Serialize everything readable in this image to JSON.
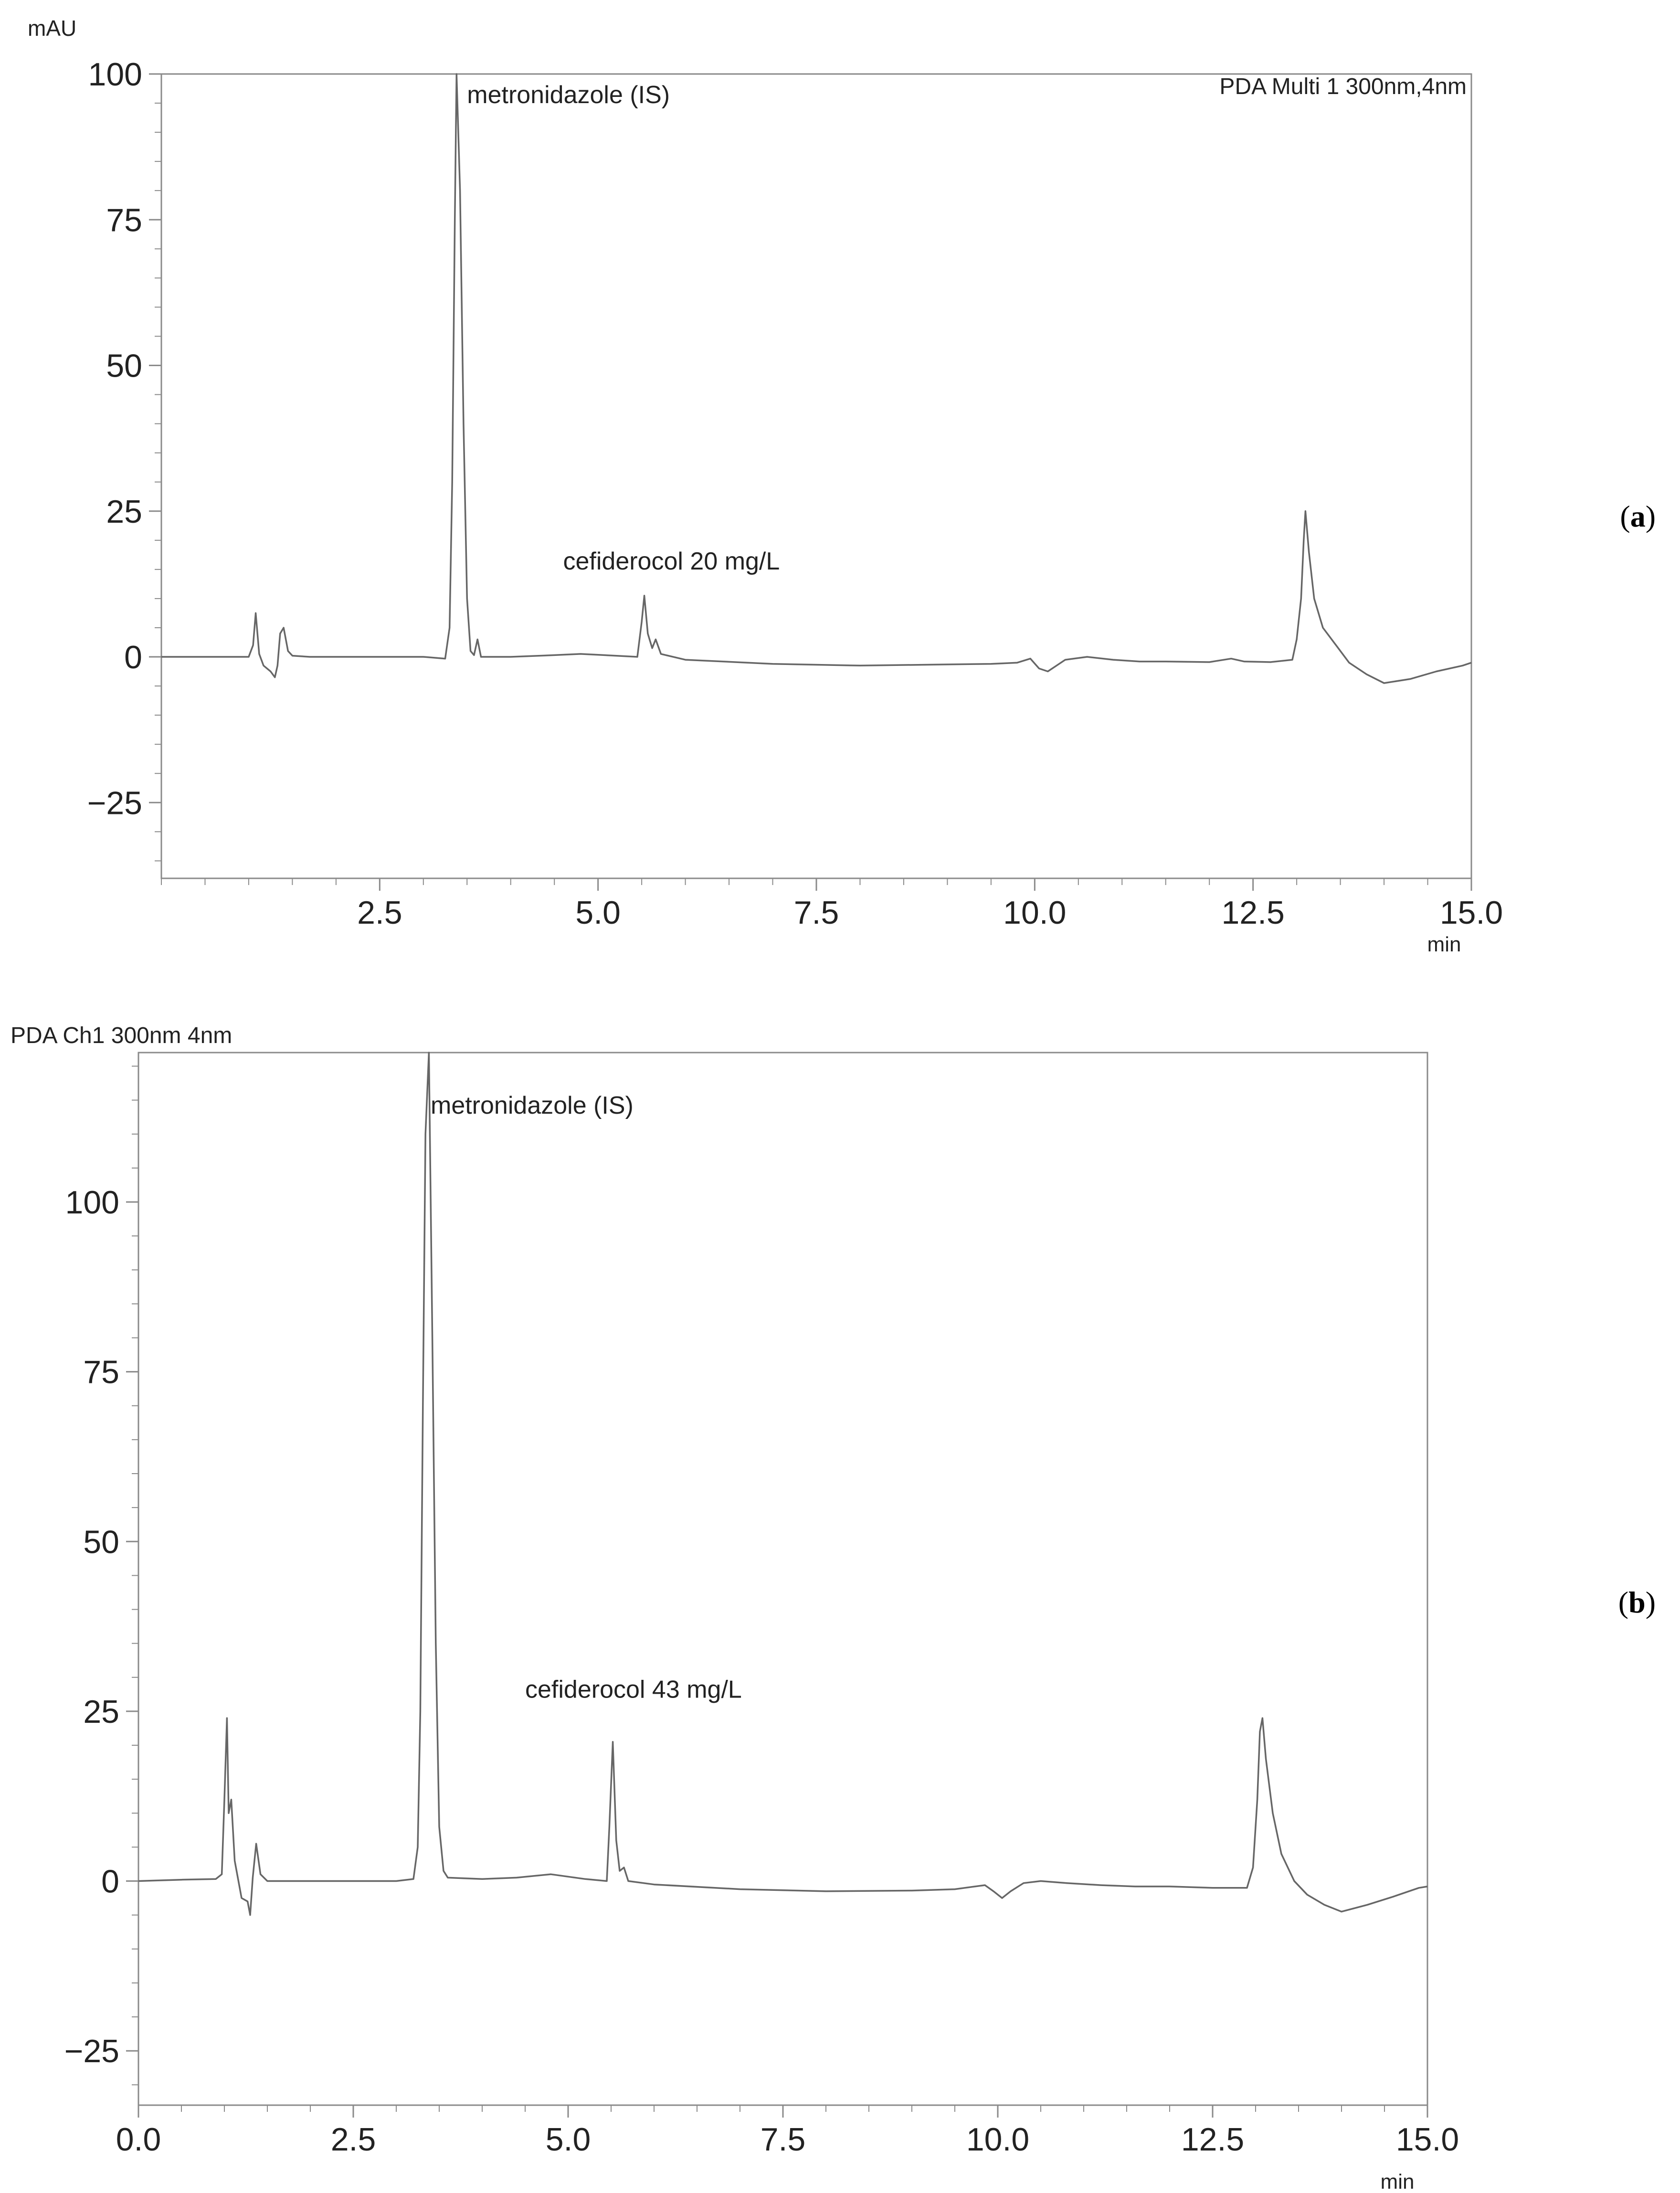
{
  "chart_data": [
    {
      "type": "line",
      "panel_label": "a",
      "ylabel": "mAU",
      "xunit": "min",
      "title": "",
      "channel_label": "PDA Multi 1 300nm,4nm",
      "xlim": [
        0,
        15
      ],
      "ylim": [
        -38,
        100
      ],
      "xticks": [
        "2.5",
        "5.0",
        "7.5",
        "10.0",
        "12.5",
        "15.0"
      ],
      "yticks": [
        "100",
        "75",
        "50",
        "25",
        "0",
        "−25"
      ],
      "annotations": [
        {
          "text": "metronidazole (IS)",
          "x": 3.5,
          "y": 95
        },
        {
          "text": "cefiderocol 20 mg/L",
          "x": 4.6,
          "y": 15
        }
      ],
      "series": [
        {
          "x": [
            0.0,
            0.5,
            1.0,
            1.05,
            1.08,
            1.12,
            1.17,
            1.25,
            1.3,
            1.33,
            1.36,
            1.4,
            1.45,
            1.5,
            1.7,
            2.0,
            3.0,
            3.25,
            3.3,
            3.33,
            3.36,
            3.38,
            3.42,
            3.46,
            3.5,
            3.54,
            3.58,
            3.62,
            3.66,
            3.7,
            4.0,
            4.5,
            4.8,
            5.2,
            5.45,
            5.5,
            5.53,
            5.57,
            5.62,
            5.66,
            5.72,
            6.0,
            7.0,
            8.0,
            9.0,
            9.5,
            9.8,
            9.95,
            10.05,
            10.15,
            10.25,
            10.35,
            10.6,
            10.9,
            11.2,
            11.5,
            12.0,
            12.25,
            12.4,
            12.7,
            12.95,
            13.0,
            13.05,
            13.08,
            13.1,
            13.14,
            13.2,
            13.3,
            13.45,
            13.6,
            13.8,
            14.0,
            14.3,
            14.6,
            14.9,
            15.0
          ],
          "y": [
            0.0,
            0.0,
            0.0,
            2.0,
            7.5,
            0.5,
            -1.5,
            -2.5,
            -3.5,
            -1.5,
            4.0,
            5.0,
            1.0,
            0.2,
            0.0,
            0.0,
            0.0,
            -0.3,
            5.0,
            30.0,
            75.0,
            100.0,
            80.0,
            40.0,
            10.0,
            1.0,
            0.3,
            3.0,
            0.0,
            0.0,
            0.0,
            0.3,
            0.5,
            0.2,
            0.0,
            6.0,
            10.5,
            4.0,
            1.5,
            3.0,
            0.5,
            -0.5,
            -1.2,
            -1.5,
            -1.3,
            -1.2,
            -1.0,
            -0.3,
            -2.0,
            -2.5,
            -1.5,
            -0.5,
            0.0,
            -0.5,
            -0.8,
            -0.8,
            -0.9,
            -0.3,
            -0.8,
            -0.9,
            -0.5,
            3.0,
            10.0,
            20.0,
            25.0,
            18.0,
            10.0,
            5.0,
            2.0,
            -1.0,
            -3.0,
            -4.5,
            -3.8,
            -2.5,
            -1.5,
            -1.0
          ]
        }
      ]
    },
    {
      "type": "line",
      "panel_label": "b",
      "ylabel": "",
      "xunit": "min",
      "title": "",
      "channel_label": "PDA Ch1 300nm 4nm",
      "xlim": [
        0,
        15
      ],
      "ylim": [
        -33,
        122
      ],
      "xticks": [
        "0.0",
        "2.5",
        "5.0",
        "7.5",
        "10.0",
        "12.5",
        "15.0"
      ],
      "yticks": [
        "100",
        "75",
        "50",
        "25",
        "0",
        "−25"
      ],
      "annotations": [
        {
          "text": "metronidazole (IS)",
          "x": 3.4,
          "y": 113
        },
        {
          "text": "cefiderocol 43 mg/L",
          "x": 4.5,
          "y": 27
        }
      ],
      "series": [
        {
          "x": [
            0.0,
            0.5,
            0.9,
            0.97,
            1.0,
            1.03,
            1.05,
            1.08,
            1.12,
            1.2,
            1.27,
            1.3,
            1.33,
            1.37,
            1.42,
            1.5,
            1.7,
            2.0,
            3.0,
            3.2,
            3.25,
            3.28,
            3.31,
            3.34,
            3.38,
            3.42,
            3.46,
            3.5,
            3.55,
            3.6,
            4.0,
            4.4,
            4.8,
            5.2,
            5.45,
            5.48,
            5.52,
            5.56,
            5.6,
            5.65,
            5.7,
            6.0,
            7.0,
            8.0,
            9.0,
            9.5,
            9.85,
            9.95,
            10.05,
            10.15,
            10.3,
            10.5,
            10.8,
            11.2,
            11.6,
            12.0,
            12.5,
            12.9,
            12.97,
            13.02,
            13.05,
            13.08,
            13.12,
            13.2,
            13.3,
            13.45,
            13.6,
            13.8,
            14.0,
            14.3,
            14.6,
            14.9,
            15.0
          ],
          "y": [
            0.0,
            0.2,
            0.3,
            1.0,
            12.0,
            24.0,
            10.0,
            12.0,
            3.0,
            -2.5,
            -3.0,
            -5.0,
            0.5,
            5.5,
            1.0,
            0.0,
            0.0,
            0.0,
            0.0,
            0.3,
            5.0,
            25.0,
            70.0,
            110.0,
            122.0,
            80.0,
            35.0,
            8.0,
            1.5,
            0.5,
            0.3,
            0.5,
            1.0,
            0.3,
            0.0,
            8.0,
            20.5,
            6.0,
            1.5,
            2.0,
            0.0,
            -0.5,
            -1.2,
            -1.5,
            -1.4,
            -1.2,
            -0.6,
            -1.5,
            -2.5,
            -1.5,
            -0.3,
            0.0,
            -0.3,
            -0.6,
            -0.8,
            -0.8,
            -1.0,
            -1.0,
            2.0,
            12.0,
            22.0,
            24.0,
            18.0,
            10.0,
            4.0,
            0.0,
            -2.0,
            -3.5,
            -4.5,
            -3.5,
            -2.3,
            -1.0,
            -0.8
          ]
        }
      ]
    }
  ]
}
